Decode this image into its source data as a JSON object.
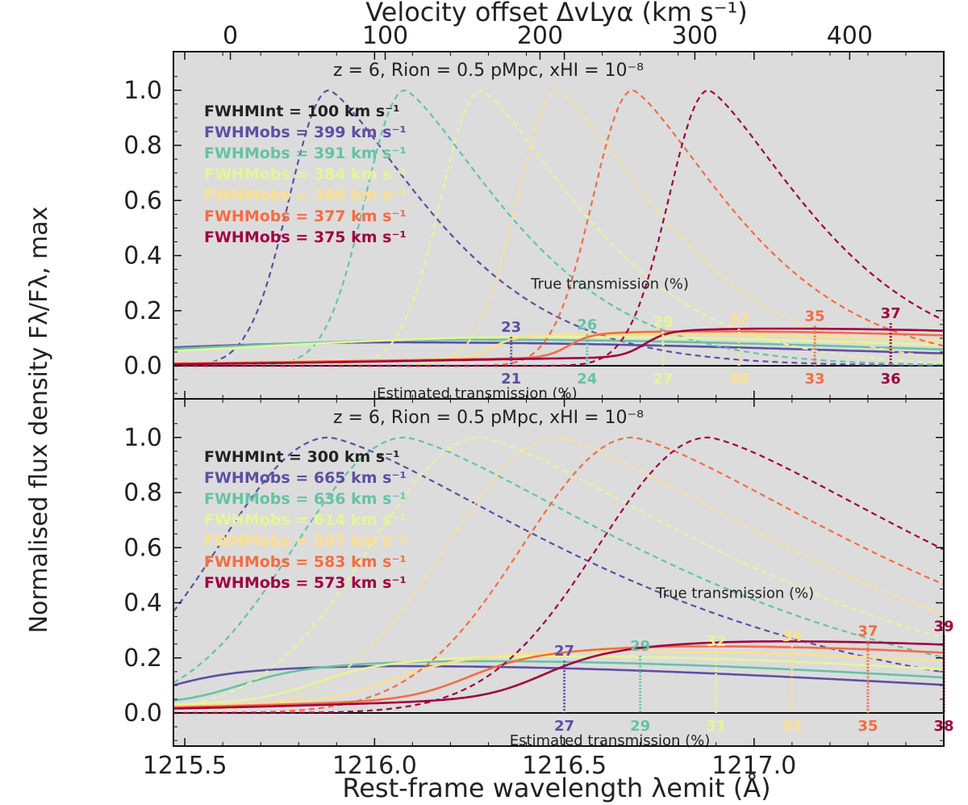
{
  "figure": {
    "ylabel": "Normalised flux density Fλ/Fλ, max",
    "xlabel_bottom": "Rest-frame wavelength λemit (Å)",
    "xlabel_top": "Velocity offset ΔvLyα (km s⁻¹)"
  },
  "colors": [
    "#5e4fa2",
    "#66c2a5",
    "#e6f598",
    "#fee08b",
    "#f46d43",
    "#9e0142"
  ],
  "chart_data": [
    {
      "type": "line",
      "title": "z = 6, Rion = 0.5 pMpc, xHI = 10⁻⁸",
      "xlabel": "Rest-frame wavelength λemit (Å)",
      "ylabel": "Normalised flux density Fλ/Fλ, max",
      "xlim": [
        1215.47,
        1217.5
      ],
      "ylim": [
        -0.12,
        1.14
      ],
      "x_ticks": [
        1215.5,
        1216.0,
        1216.5,
        1217.0
      ],
      "x_tick_labels": [
        "1215.5",
        "1216.0",
        "1216.5",
        "1217.0"
      ],
      "y_ticks": [
        0.0,
        0.2,
        0.4,
        0.6,
        0.8,
        1.0
      ],
      "y_tick_labels": [
        "0.0",
        "0.2",
        "0.4",
        "0.6",
        "0.8",
        "1.0"
      ],
      "top_axis": {
        "label": "Velocity offset ΔvLyα (km s⁻¹)",
        "ticks": [
          0,
          100,
          200,
          300,
          400
        ]
      },
      "legend_header": "FWHMInt = 100 km s⁻¹",
      "intrinsic_fwhm_kms": 100,
      "series": [
        {
          "name": "FWHMobs = 399 km s⁻¹",
          "peak_x": 1215.88,
          "true_pct": 23,
          "est_pct": 21
        },
        {
          "name": "FWHMobs = 391 km s⁻¹",
          "peak_x": 1216.08,
          "true_pct": 26,
          "est_pct": 24
        },
        {
          "name": "FWHMobs = 384 km s⁻¹",
          "peak_x": 1216.28,
          "true_pct": 29,
          "est_pct": 27
        },
        {
          "name": "FWHMobs = 380 km s⁻¹",
          "peak_x": 1216.48,
          "true_pct": 32,
          "est_pct": 30
        },
        {
          "name": "FWHMobs = 377 km s⁻¹",
          "peak_x": 1216.68,
          "true_pct": 35,
          "est_pct": 33
        },
        {
          "name": "FWHMobs = 375 km s⁻¹",
          "peak_x": 1216.88,
          "true_pct": 37,
          "est_pct": 36
        }
      ],
      "true_label": "True transmission (%)",
      "est_label": "Estimated transmission (%)"
    },
    {
      "type": "line",
      "title": "z = 6, Rion = 0.5 pMpc, xHI = 10⁻⁸",
      "xlabel": "Rest-frame wavelength λemit (Å)",
      "ylabel": "Normalised flux density Fλ/Fλ, max",
      "xlim": [
        1215.47,
        1217.5
      ],
      "ylim": [
        -0.12,
        1.14
      ],
      "x_ticks": [
        1215.5,
        1216.0,
        1216.5,
        1217.0
      ],
      "x_tick_labels": [
        "1215.5",
        "1216.0",
        "1216.5",
        "1217.0"
      ],
      "y_ticks": [
        0.0,
        0.2,
        0.4,
        0.6,
        0.8,
        1.0
      ],
      "y_tick_labels": [
        "0.0",
        "0.2",
        "0.4",
        "0.6",
        "0.8",
        "1.0"
      ],
      "legend_header": "FWHMInt = 300 km s⁻¹",
      "intrinsic_fwhm_kms": 300,
      "series": [
        {
          "name": "FWHMobs = 665 km s⁻¹",
          "peak_x": 1215.88,
          "true_pct": 27,
          "est_pct": 27
        },
        {
          "name": "FWHMobs = 636 km s⁻¹",
          "peak_x": 1216.08,
          "true_pct": 29,
          "est_pct": 29
        },
        {
          "name": "FWHMobs = 614 km s⁻¹",
          "peak_x": 1216.28,
          "true_pct": 32,
          "est_pct": 31
        },
        {
          "name": "FWHMobs = 597 km s⁻¹",
          "peak_x": 1216.48,
          "true_pct": 34,
          "est_pct": 33
        },
        {
          "name": "FWHMobs = 583 km s⁻¹",
          "peak_x": 1216.68,
          "true_pct": 37,
          "est_pct": 35
        },
        {
          "name": "FWHMobs = 573 km s⁻¹",
          "peak_x": 1216.88,
          "true_pct": 39,
          "est_pct": 38
        }
      ],
      "true_label": "True transmission (%)",
      "est_label": "Estimated transmission (%)"
    }
  ]
}
